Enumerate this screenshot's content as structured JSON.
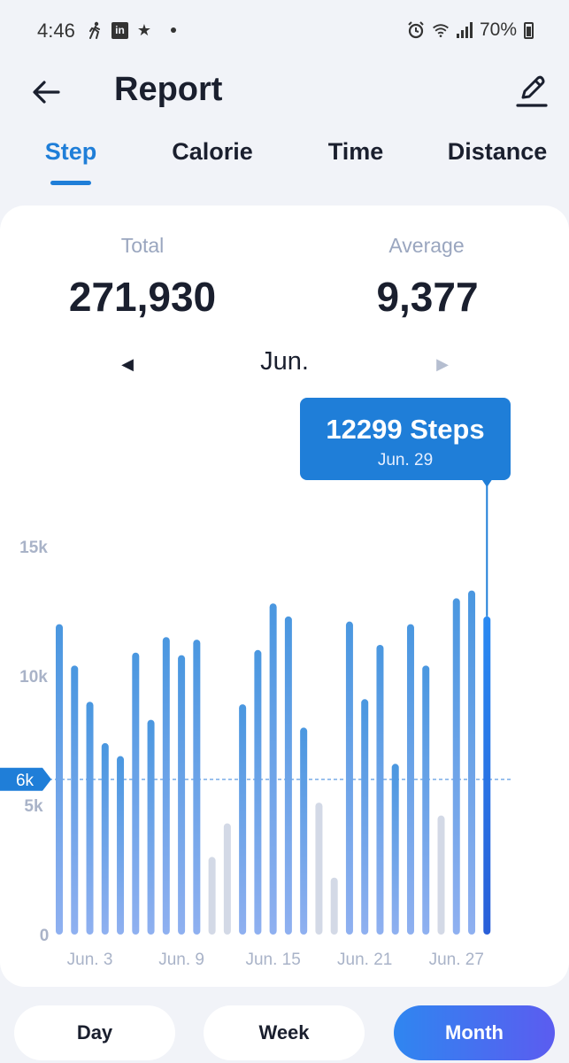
{
  "status_bar": {
    "time": "4:46",
    "battery": "70%",
    "icons": [
      "walk-icon",
      "linkedin-icon",
      "star-icon",
      "alarm-icon",
      "wifi-icon",
      "signal-icon",
      "battery-icon"
    ]
  },
  "header": {
    "title": "Report"
  },
  "tabs": [
    {
      "label": "Step",
      "active": true
    },
    {
      "label": "Calorie",
      "active": false
    },
    {
      "label": "Time",
      "active": false
    },
    {
      "label": "Distance",
      "active": false
    }
  ],
  "summary": {
    "total_label": "Total",
    "total_value": "271,930",
    "average_label": "Average",
    "average_value": "9,377",
    "month": "Jun."
  },
  "tooltip": {
    "value": "12299 Steps",
    "date": "Jun. 29"
  },
  "goal_label": "6k",
  "colors": {
    "accent": "#1f7ed8",
    "bar_top": "#4a97e0",
    "bar_bottom": "#8fb0f0",
    "bar_inactive": "#d3d9e6",
    "selected_bar": "#2a7df0"
  },
  "chart_data": {
    "type": "bar",
    "ylim": [
      0,
      15000
    ],
    "yticks": [
      "0",
      "5k",
      "10k",
      "15k"
    ],
    "goal": 6000,
    "x_tick_labels": [
      "Jun. 3",
      "Jun. 9",
      "Jun. 15",
      "Jun. 21",
      "Jun. 27"
    ],
    "x_tick_days": [
      3,
      9,
      15,
      21,
      27
    ],
    "days": [
      1,
      2,
      3,
      4,
      5,
      6,
      7,
      8,
      9,
      10,
      11,
      12,
      13,
      14,
      15,
      16,
      17,
      18,
      19,
      20,
      21,
      22,
      23,
      24,
      25,
      26,
      27,
      28,
      29
    ],
    "values": [
      12000,
      10400,
      9000,
      7400,
      6900,
      10900,
      8300,
      11500,
      10800,
      11400,
      3000,
      4300,
      8900,
      11000,
      12800,
      12300,
      8000,
      5100,
      2200,
      12100,
      9100,
      11200,
      6600,
      12000,
      10400,
      4600,
      13000,
      13300,
      12299
    ],
    "below_goal_style": [
      false,
      false,
      false,
      false,
      false,
      false,
      false,
      false,
      false,
      false,
      true,
      true,
      false,
      false,
      false,
      false,
      false,
      true,
      true,
      false,
      false,
      false,
      false,
      false,
      false,
      true,
      false,
      false,
      false
    ],
    "selected_day": 29
  },
  "range_buttons": [
    {
      "label": "Day",
      "active": false
    },
    {
      "label": "Week",
      "active": false
    },
    {
      "label": "Month",
      "active": true
    }
  ]
}
